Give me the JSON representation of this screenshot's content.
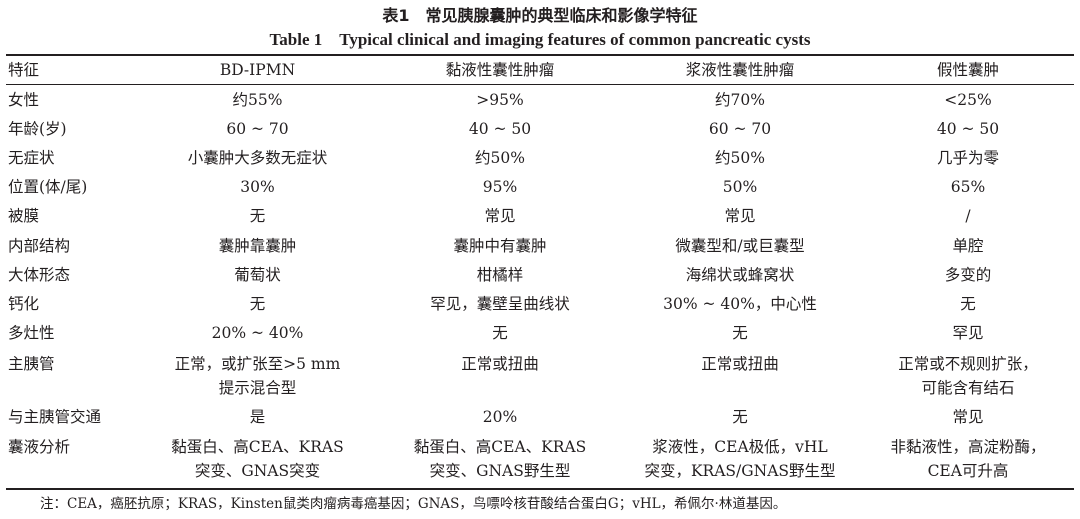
{
  "caption": {
    "cn": "表1　常见胰腺囊肿的典型临床和影像学特征",
    "en": "Table 1　Typical clinical and imaging features of common pancreatic cysts"
  },
  "table": {
    "headers": [
      "特征",
      "BD-IPMN",
      "黏液性囊性肿瘤",
      "浆液性囊性肿瘤",
      "假性囊肿"
    ],
    "rows": [
      [
        "女性",
        "约55%",
        ">95%",
        "约70%",
        "<25%"
      ],
      [
        "年龄(岁)",
        "60 ~ 70",
        "40 ~ 50",
        "60 ~ 70",
        "40 ~ 50"
      ],
      [
        "无症状",
        "小囊肿大多数无症状",
        "约50%",
        "约50%",
        "几乎为零"
      ],
      [
        "位置(体/尾)",
        "30%",
        "95%",
        "50%",
        "65%"
      ],
      [
        "被膜",
        "无",
        "常见",
        "常见",
        "/"
      ],
      [
        "内部结构",
        "囊肿靠囊肿",
        "囊肿中有囊肿",
        "微囊型和/或巨囊型",
        "单腔"
      ],
      [
        "大体形态",
        "葡萄状",
        "柑橘样",
        "海绵状或蜂窝状",
        "多变的"
      ],
      [
        "钙化",
        "无",
        "罕见，囊壁呈曲线状",
        "30% ~ 40%，中心性",
        "无"
      ],
      [
        "多灶性",
        "20% ~ 40%",
        "无",
        "无",
        "罕见"
      ],
      [
        "主胰管",
        "正常，或扩张至>5 mm\n提示混合型",
        "正常或扭曲",
        "正常或扭曲",
        "正常或不规则扩张，\n可能含有结石"
      ],
      [
        "与主胰管交通",
        "是",
        "20%",
        "无",
        "常见"
      ],
      [
        "囊液分析",
        "黏蛋白、高CEA、KRAS\n突变、GNAS突变",
        "黏蛋白、高CEA、KRAS\n突变、GNAS野生型",
        "浆液性，CEA极低，vHL\n突变，KRAS/GNAS野生型",
        "非黏液性，高淀粉酶，\nCEA可升高"
      ]
    ]
  },
  "footnote": "注：CEA，癌胚抗原；KRAS，Kinsten鼠类肉瘤病毒癌基因；GNAS，鸟嘌呤核苷酸结合蛋白G；vHL，希佩尔·林道基因。"
}
